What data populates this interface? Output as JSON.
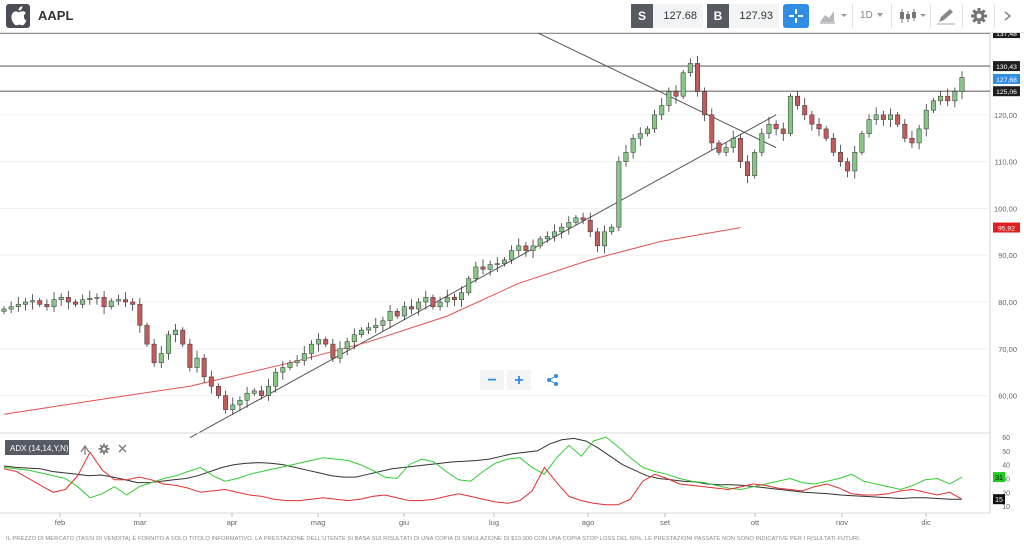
{
  "header": {
    "symbol": "AAPL",
    "sell_label": "S",
    "sell_price": "127.68",
    "buy_label": "B",
    "buy_price": "127.93",
    "timeframe": "1D"
  },
  "icons": {
    "logo": "apple-icon",
    "crosshair": "crosshair-icon",
    "chart_type": "area-chart-icon",
    "candles": "candlestick-icon",
    "draw": "pencil-icon",
    "settings": "gear-icon"
  },
  "zoom": {
    "minus": "−",
    "plus": "+"
  },
  "indicator": {
    "label": "ADX (14,14,Y,N)"
  },
  "footer": "IL PREZZO DI MERCATO (TASSI DI VENDITA) È FORNITO A SOLO TITOLO INFORMATIVO. LA PRESTAZIONE DELL'UTENTE SI BASA SUI RISULTATI DI UNA COPIA DI SIMULAZIONE DI $10.000 CON UNA COPIA STOP LOSS DEL 60%. LE PRESTAZIONI PASSATE NON SONO INDICATIVE PER I RISULTATI FUTURI.",
  "colors": {
    "accent": "#2f8de4",
    "up_candle": "#86c586",
    "down_candle": "#c35a5a",
    "ma_line": "#e05050",
    "adx_line": "#333333",
    "di_plus": "#33cc33",
    "di_minus": "#e03030"
  },
  "chart_data": [
    {
      "type": "candlestick",
      "x_tick_labels": [
        "feb",
        "mar",
        "apr",
        "mag",
        "giu",
        "lug",
        "ago",
        "set",
        "ott",
        "nov",
        "dic"
      ],
      "y_tick_labels": [
        "60,00",
        "70,00",
        "80,00",
        "90,00",
        "100,00",
        "110,00",
        "120,00"
      ],
      "ylim": [
        52,
        137.5
      ],
      "price_levels": [
        {
          "label": "137,48",
          "value": 137.48
        },
        {
          "label": "130,43",
          "value": 130.43
        },
        {
          "label": "127,68",
          "value": 127.68
        },
        {
          "label": "125,06",
          "value": 125.06
        }
      ],
      "ma_label": "95,92",
      "ma_value": 95.92,
      "ma_series": [
        [
          0,
          56
        ],
        [
          15,
          59.5
        ],
        [
          26,
          62
        ],
        [
          40,
          67
        ],
        [
          51,
          71.5
        ],
        [
          62,
          77
        ],
        [
          72,
          84
        ],
        [
          82,
          89
        ],
        [
          92,
          93
        ],
        [
          103,
          95.9
        ]
      ],
      "trendlines": [
        {
          "name": "support",
          "points": [
            [
              26,
              51
            ],
            [
              108,
              120
            ]
          ]
        },
        {
          "name": "resistance",
          "points": [
            [
              74,
              138
            ],
            [
              108,
              113
            ]
          ]
        }
      ],
      "closes": [
        78.5,
        79,
        79.5,
        80,
        80.3,
        79.5,
        79,
        80.5,
        81,
        80,
        79.5,
        80.5,
        80.8,
        81,
        79,
        80.2,
        80.5,
        80,
        79.5,
        75,
        71,
        67,
        69,
        73,
        74,
        71,
        66,
        68,
        64,
        62,
        60,
        57,
        58,
        59,
        60.5,
        61,
        60,
        62,
        65,
        66,
        67,
        67.5,
        69,
        71,
        72,
        71,
        68,
        70,
        71.5,
        73,
        74,
        74.5,
        75,
        76,
        78,
        77,
        79,
        78.5,
        80,
        81,
        79,
        80,
        81,
        80.5,
        82,
        85,
        87.5,
        87,
        88,
        88.2,
        89,
        91,
        92,
        91,
        92,
        93.5,
        94,
        95,
        96,
        97,
        98,
        97.5,
        95,
        92,
        95,
        96,
        110,
        112,
        115,
        116,
        117,
        120,
        122,
        125,
        124,
        129,
        131,
        125,
        120,
        114,
        112,
        113,
        115,
        110,
        107,
        112,
        116,
        118,
        117,
        116,
        124,
        122,
        120,
        118,
        117,
        115,
        112,
        110,
        108,
        112,
        116,
        119,
        120,
        119,
        120,
        118,
        115,
        114,
        117,
        121,
        123,
        124,
        123,
        125,
        128
      ],
      "adx_y_tick_labels": [
        "10",
        "20",
        "30",
        "40",
        "50",
        "60"
      ],
      "adx_ylim": [
        5,
        60
      ],
      "adx_current": {
        "adx": "15",
        "di_plus": "31"
      },
      "adx_series": [
        {
          "name": "ADX",
          "values": [
            39,
            38,
            37.5,
            37,
            35,
            34,
            33,
            32,
            32.5,
            31,
            29,
            27,
            27,
            28,
            29,
            30,
            32,
            35,
            38,
            40,
            41,
            41.5,
            41,
            40,
            38,
            36,
            34,
            32,
            31,
            31,
            33,
            35,
            37,
            38,
            39,
            40,
            41,
            42,
            42.5,
            43,
            44,
            46,
            48,
            49,
            50,
            55,
            58,
            59,
            57,
            52,
            46,
            40,
            36,
            32,
            30,
            29,
            28,
            27.5,
            26,
            25.5,
            25.5,
            25,
            24,
            23,
            22,
            21,
            20,
            19.5,
            19,
            18,
            17.5,
            17,
            16.5,
            16,
            15.5,
            16,
            16,
            15.5,
            15,
            15
          ]
        },
        {
          "name": "DI+",
          "values": [
            38,
            37,
            36,
            34,
            32,
            30,
            24,
            16,
            19,
            24,
            18,
            24,
            27,
            30,
            32,
            35,
            38,
            32,
            28,
            30,
            33,
            35,
            37,
            39,
            41,
            43,
            45,
            44,
            43,
            40,
            36,
            31,
            30,
            40,
            44,
            42,
            35,
            29,
            28,
            35,
            41,
            44,
            45,
            38,
            33,
            45,
            54,
            46,
            57,
            60,
            53,
            45,
            38,
            35,
            33,
            30,
            28,
            27,
            25,
            23,
            22,
            24,
            26,
            28,
            30,
            27,
            26,
            28,
            30,
            33,
            28,
            26,
            24,
            22,
            25,
            29,
            30,
            26,
            31
          ]
        },
        {
          "name": "DI-",
          "values": [
            37,
            35,
            30,
            25,
            20,
            22,
            32,
            49,
            36,
            29,
            29,
            31,
            29,
            26,
            25,
            23,
            20,
            21,
            22,
            20,
            18,
            17,
            15,
            14,
            14,
            15,
            16,
            15,
            14,
            15,
            17,
            18,
            16,
            14,
            14,
            15,
            17,
            19,
            17,
            15,
            13,
            12,
            14,
            21,
            38,
            27,
            17,
            14,
            12,
            11,
            11,
            15,
            28,
            33,
            30,
            26,
            25,
            24,
            23,
            22,
            24,
            26,
            25,
            23,
            22,
            21,
            24,
            26,
            23,
            19,
            18,
            18,
            19,
            21,
            22,
            20,
            18,
            20,
            15
          ]
        }
      ]
    }
  ]
}
